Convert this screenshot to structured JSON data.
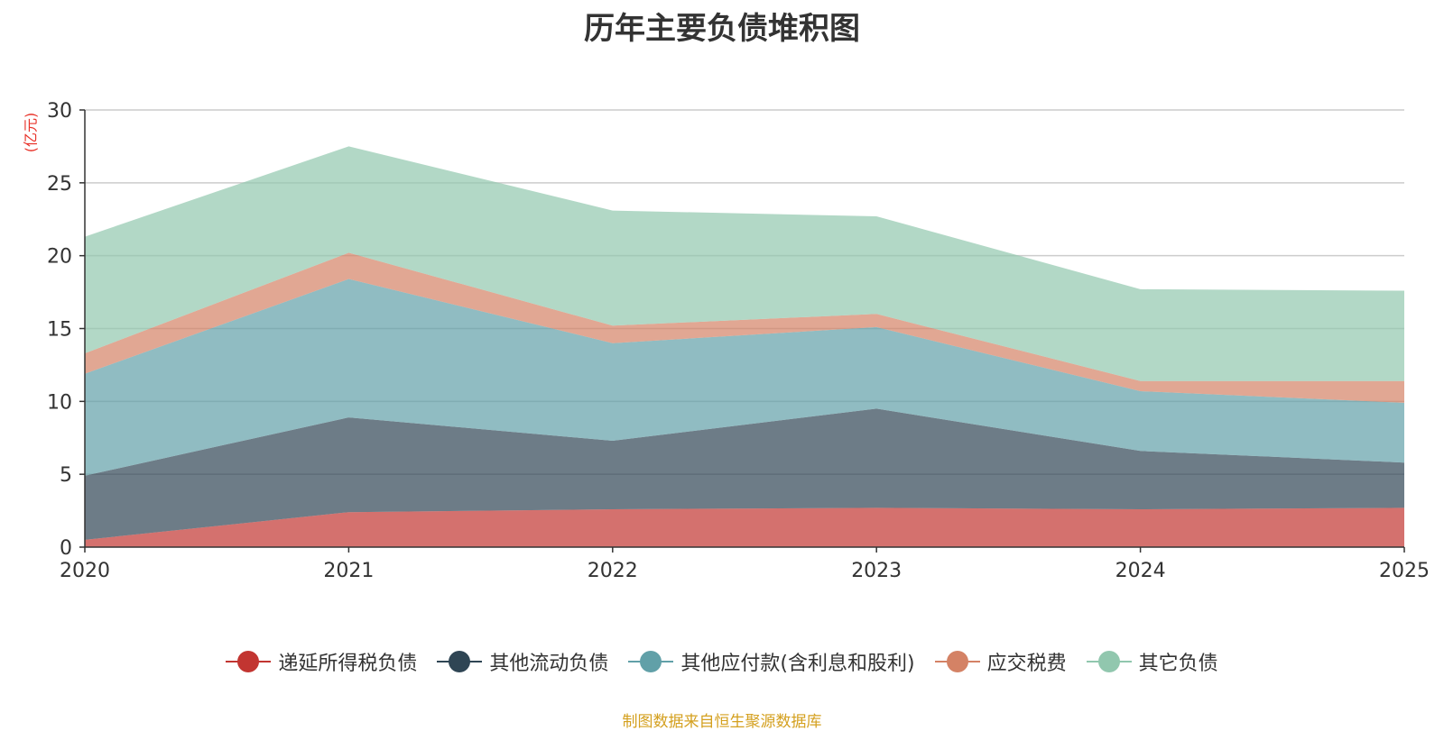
{
  "chart_data": {
    "type": "area",
    "stacked": true,
    "title": "历年主要负债堆积图",
    "ylabel": "(亿元)",
    "xlabel": "",
    "x": [
      "2020",
      "2021",
      "2022",
      "2023",
      "2024",
      "2025"
    ],
    "ylim": [
      0,
      30
    ],
    "yticks": [
      "0",
      "5",
      "10",
      "15",
      "20",
      "25",
      "30"
    ],
    "grid": true,
    "legend_position": "bottom",
    "series": [
      {
        "name": "递延所得税负债",
        "values": [
          0.5,
          2.4,
          2.6,
          2.7,
          2.6,
          2.7
        ],
        "color": "#c23531"
      },
      {
        "name": "其他流动负债",
        "values": [
          4.4,
          6.5,
          4.7,
          6.8,
          4.0,
          3.1
        ],
        "color": "#2f4554"
      },
      {
        "name": "其他应付款(含利息和股利)",
        "values": [
          7.0,
          9.5,
          6.7,
          5.6,
          4.1,
          4.1
        ],
        "color": "#61a0a8"
      },
      {
        "name": "应交税费",
        "values": [
          1.4,
          1.8,
          1.2,
          0.9,
          0.7,
          1.5
        ],
        "color": "#d48265"
      },
      {
        "name": "其它负债",
        "values": [
          8.0,
          7.3,
          7.9,
          6.7,
          6.3,
          6.2
        ],
        "color": "#91c7ae"
      }
    ],
    "source": "制图数据来自恒生聚源数据库"
  }
}
